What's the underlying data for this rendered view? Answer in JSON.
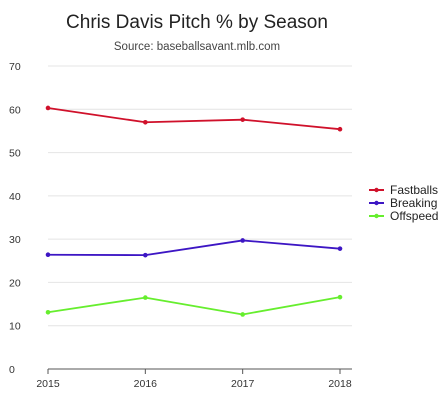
{
  "chart_data": {
    "type": "line",
    "title": "Chris Davis Pitch % by Season",
    "subtitle": "Source: baseballsavant.mlb.com",
    "xlabel": "",
    "ylabel": "",
    "x": [
      "2015",
      "2016",
      "2017",
      "2018"
    ],
    "ylim": [
      0,
      70
    ],
    "yticks": [
      0,
      10,
      20,
      30,
      40,
      50,
      60,
      70
    ],
    "grid": true,
    "legend_position": "right",
    "series": [
      {
        "name": "Fastballs",
        "color": "#d0112b",
        "values": [
          60.3,
          57.0,
          57.6,
          55.4
        ]
      },
      {
        "name": "Breaking",
        "color": "#3d16c4",
        "values": [
          26.4,
          26.3,
          29.7,
          27.8
        ]
      },
      {
        "name": "Offspeed",
        "color": "#66ee2e",
        "values": [
          13.1,
          16.5,
          12.6,
          16.6
        ]
      }
    ]
  }
}
